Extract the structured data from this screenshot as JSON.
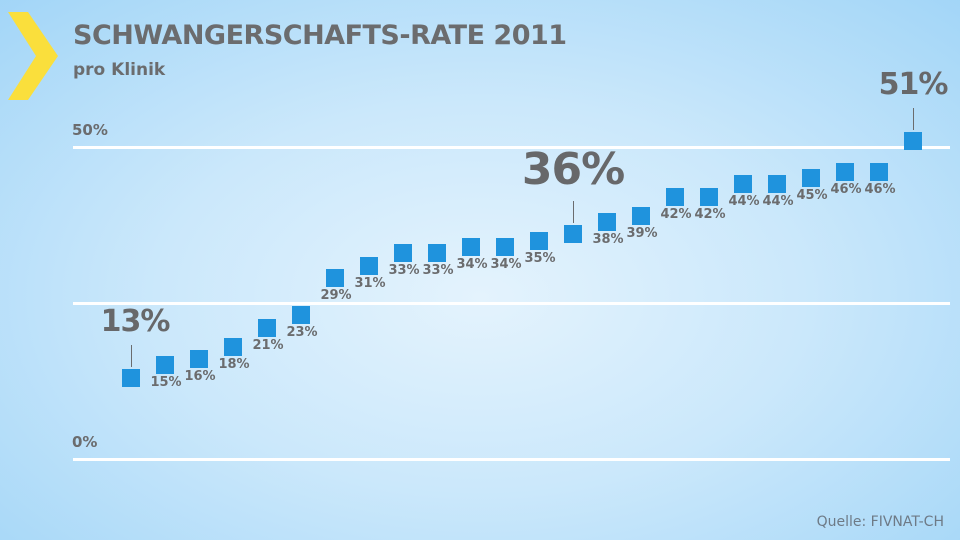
{
  "header": {
    "title": "SCHWANGERSCHAFTS-RATE 2011",
    "subtitle": "pro Klinik",
    "accent_color": "#fadf3c"
  },
  "axis": {
    "ticks": [
      {
        "label": "50%",
        "value": 50
      },
      {
        "label": "",
        "value": 25
      },
      {
        "label": "0%",
        "value": 0
      }
    ]
  },
  "highlights": [
    {
      "index": 0,
      "label": "13%"
    },
    {
      "index": 13,
      "label": "36%"
    },
    {
      "index": 23,
      "label": "51%"
    }
  ],
  "source": "Quelle: FIVNAT-CH",
  "chart_data": {
    "type": "scatter",
    "title": "SCHWANGERSCHAFTS-RATE 2011",
    "subtitle": "pro Klinik",
    "xlabel": "",
    "ylabel": "",
    "ylim": [
      0,
      50
    ],
    "yticks": [
      "0%",
      "50%"
    ],
    "grid": true,
    "marker_color": "#1f93dd",
    "categories": [
      "1",
      "2",
      "3",
      "4",
      "5",
      "6",
      "7",
      "8",
      "9",
      "10",
      "11",
      "12",
      "13",
      "14",
      "15",
      "16",
      "17",
      "18",
      "19",
      "20",
      "21",
      "22",
      "23",
      "24"
    ],
    "values": [
      13,
      15,
      16,
      18,
      21,
      23,
      29,
      31,
      33,
      33,
      34,
      34,
      35,
      36,
      38,
      39,
      42,
      42,
      44,
      44,
      45,
      46,
      46,
      51
    ],
    "labels": [
      "13%",
      "15%",
      "16%",
      "18%",
      "21%",
      "23%",
      "29%",
      "31%",
      "33%",
      "33%",
      "34%",
      "34%",
      "35%",
      "36%",
      "38%",
      "39%",
      "42%",
      "42%",
      "44%",
      "44%",
      "45%",
      "46%",
      "46%",
      "51%"
    ],
    "annotations": [
      "13%",
      "36%",
      "51%"
    ],
    "source": "Quelle: FIVNAT-CH"
  }
}
